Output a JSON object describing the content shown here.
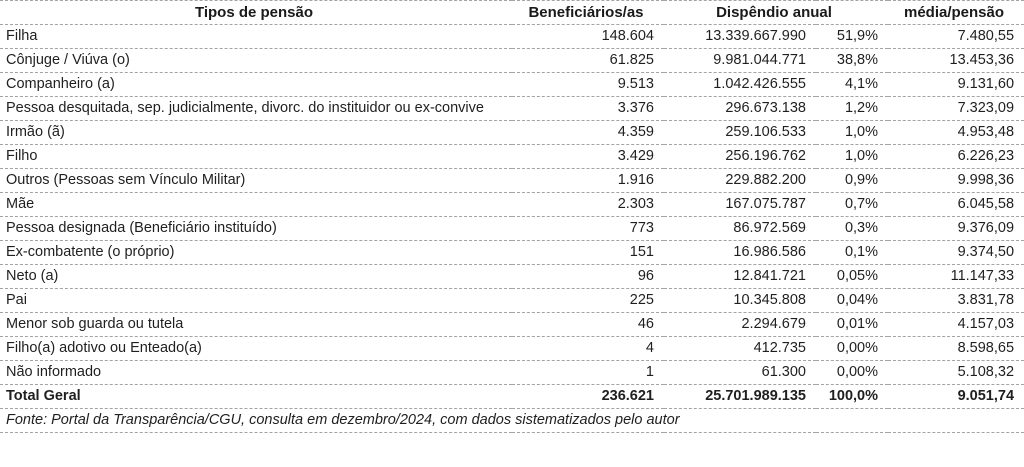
{
  "header": {
    "tipos": "Tipos de pensão",
    "beneficiarios": "Beneficiários/as",
    "dispendio": "Dispêndio anual",
    "media": "média/pensão"
  },
  "rows": [
    {
      "tipo": "Filha",
      "beneficiarios": "148.604",
      "dispendio": "13.339.667.990",
      "percentual": "51,9%",
      "media": "7.480,55"
    },
    {
      "tipo": "Cônjuge / Viúva (o)",
      "beneficiarios": "61.825",
      "dispendio": "9.981.044.771",
      "percentual": "38,8%",
      "media": "13.453,36"
    },
    {
      "tipo": "Companheiro (a)",
      "beneficiarios": "9.513",
      "dispendio": "1.042.426.555",
      "percentual": "4,1%",
      "media": "9.131,60"
    },
    {
      "tipo": "Pessoa desquitada, sep. judicialmente, divorc. do instituidor ou ex-convive",
      "beneficiarios": "3.376",
      "dispendio": "296.673.138",
      "percentual": "1,2%",
      "media": "7.323,09"
    },
    {
      "tipo": "Irmão (ã)",
      "beneficiarios": "4.359",
      "dispendio": "259.106.533",
      "percentual": "1,0%",
      "media": "4.953,48"
    },
    {
      "tipo": "Filho",
      "beneficiarios": "3.429",
      "dispendio": "256.196.762",
      "percentual": "1,0%",
      "media": "6.226,23"
    },
    {
      "tipo": "Outros (Pessoas sem Vínculo Militar)",
      "beneficiarios": "1.916",
      "dispendio": "229.882.200",
      "percentual": "0,9%",
      "media": "9.998,36"
    },
    {
      "tipo": "Mãe",
      "beneficiarios": "2.303",
      "dispendio": "167.075.787",
      "percentual": "0,7%",
      "media": "6.045,58"
    },
    {
      "tipo": "Pessoa designada (Beneficiário instituído)",
      "beneficiarios": "773",
      "dispendio": "86.972.569",
      "percentual": "0,3%",
      "media": "9.376,09"
    },
    {
      "tipo": "Ex-combatente (o próprio)",
      "beneficiarios": "151",
      "dispendio": "16.986.586",
      "percentual": "0,1%",
      "media": "9.374,50"
    },
    {
      "tipo": "Neto (a)",
      "beneficiarios": "96",
      "dispendio": "12.841.721",
      "percentual": "0,05%",
      "media": "11.147,33"
    },
    {
      "tipo": "Pai",
      "beneficiarios": "225",
      "dispendio": "10.345.808",
      "percentual": "0,04%",
      "media": "3.831,78"
    },
    {
      "tipo": "Menor sob guarda ou tutela",
      "beneficiarios": "46",
      "dispendio": "2.294.679",
      "percentual": "0,01%",
      "media": "4.157,03"
    },
    {
      "tipo": "Filho(a) adotivo ou Enteado(a)",
      "beneficiarios": "4",
      "dispendio": "412.735",
      "percentual": "0,00%",
      "media": "8.598,65"
    },
    {
      "tipo": "Não informado",
      "beneficiarios": "1",
      "dispendio": "61.300",
      "percentual": "0,00%",
      "media": "5.108,32"
    }
  ],
  "total": {
    "tipo": "Total Geral",
    "beneficiarios": "236.621",
    "dispendio": "25.701.989.135",
    "percentual": "100,0%",
    "media": "9.051,74"
  },
  "fonte": "Fonte: Portal da Transparência/CGU, consulta em dezembro/2024, com dados sistematizados pelo autor",
  "colors": {
    "text": "#1f1f1f",
    "separator": "#a3a3a3",
    "background": "#ffffff"
  }
}
